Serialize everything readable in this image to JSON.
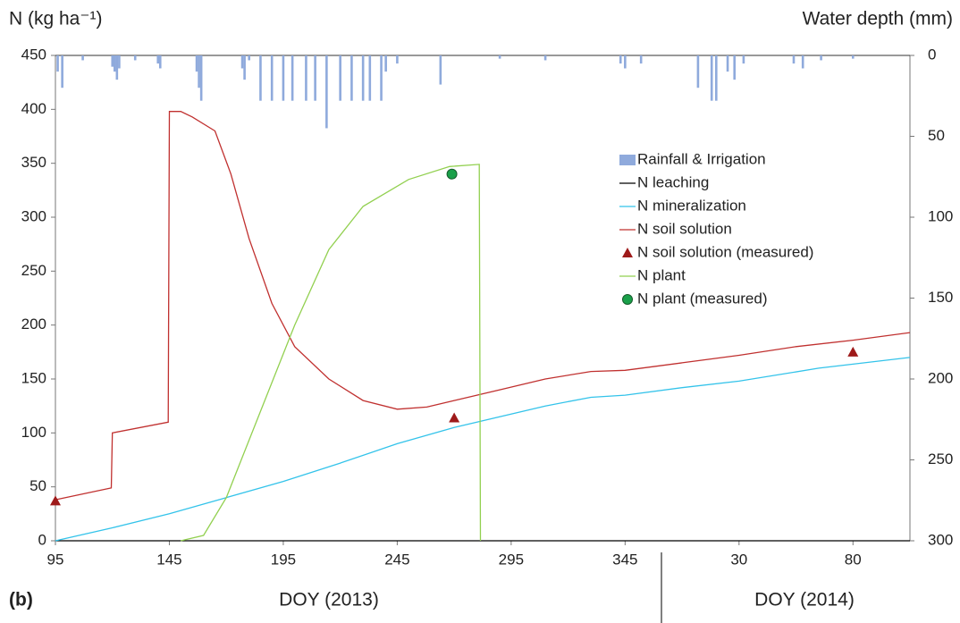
{
  "chart_data": {
    "type": "line",
    "ylabel": "N (kg ha⁻¹)",
    "y2label": "Water depth (mm)",
    "panel_label": "(b)",
    "xlabels": [
      "DOY (2013)",
      "DOY (2014)"
    ],
    "xlim": [
      95,
      470
    ],
    "xticks": [
      95,
      145,
      195,
      245,
      295,
      345,
      {
        "value": 395,
        "label": "30"
      },
      {
        "value": 445,
        "label": "80"
      }
    ],
    "ylim": [
      0,
      450
    ],
    "yticks": [
      0,
      50,
      100,
      150,
      200,
      250,
      300,
      350,
      400,
      450
    ],
    "y2lim": [
      300,
      0
    ],
    "y2ticks": [
      0,
      50,
      100,
      150,
      200,
      250,
      300
    ],
    "legend": "upper right",
    "series": [
      {
        "name": "Rainfall & Irrigation",
        "type": "bar",
        "axis": "y2",
        "color": "#8faadc",
        "x": [
          96,
          98,
          107,
          120,
          121,
          122,
          123,
          130,
          140,
          141,
          157,
          158,
          159,
          177,
          178,
          180,
          185,
          190,
          195,
          199,
          205,
          209,
          214,
          220,
          225,
          230,
          233,
          238,
          240,
          245,
          264,
          290,
          310,
          343,
          345,
          352,
          377,
          383,
          385,
          390,
          393,
          397,
          419,
          423,
          431,
          445
        ],
        "values": [
          10,
          20,
          3,
          7,
          10,
          15,
          8,
          3,
          5,
          8,
          10,
          20,
          28,
          8,
          15,
          3,
          28,
          28,
          28,
          28,
          28,
          28,
          45,
          28,
          28,
          28,
          28,
          28,
          10,
          5,
          18,
          2,
          3,
          5,
          8,
          5,
          20,
          28,
          28,
          10,
          15,
          5,
          5,
          8,
          3,
          2
        ]
      },
      {
        "name": "N leaching",
        "type": "line",
        "color": "#000000",
        "x": [
          95,
          470
        ],
        "values": [
          0,
          0
        ]
      },
      {
        "name": "N mineralization",
        "type": "line",
        "color": "#33c3ea",
        "x": [
          95,
          120,
          145,
          170,
          195,
          220,
          245,
          270,
          290,
          310,
          330,
          345,
          370,
          395,
          430,
          470
        ],
        "values": [
          0,
          12,
          25,
          40,
          55,
          72,
          90,
          105,
          115,
          125,
          133,
          135,
          142,
          148,
          160,
          170
        ]
      },
      {
        "name": "N soil solution",
        "type": "line",
        "color": "#c0302f",
        "x": [
          95,
          119.5,
          120,
          144.5,
          145,
          150,
          155,
          165,
          172,
          180,
          190,
          200,
          215,
          230,
          245,
          258,
          270,
          290,
          310,
          330,
          345,
          370,
          395,
          420,
          445,
          470
        ],
        "values": [
          38,
          49,
          100,
          110,
          398,
          398,
          393,
          380,
          340,
          280,
          220,
          180,
          150,
          130,
          122,
          124,
          130,
          140,
          150,
          157,
          158,
          165,
          172,
          180,
          186,
          193
        ]
      },
      {
        "name": "N soil solution (measured)",
        "type": "scatter",
        "marker": "triangle",
        "color": "#9e1a1a",
        "x": [
          95,
          270,
          445
        ],
        "values": [
          37,
          114,
          175
        ]
      },
      {
        "name": "N plant",
        "type": "line",
        "color": "#92d050",
        "x": [
          150,
          160,
          170,
          185,
          200,
          215,
          230,
          250,
          268,
          281,
          281.5
        ],
        "values": [
          0,
          5,
          40,
          120,
          200,
          270,
          310,
          335,
          347,
          349,
          0
        ]
      },
      {
        "name": "N plant (measured)",
        "type": "scatter",
        "marker": "circle",
        "color": "#1aa04a",
        "x": [
          269
        ],
        "values": [
          340
        ]
      }
    ]
  }
}
